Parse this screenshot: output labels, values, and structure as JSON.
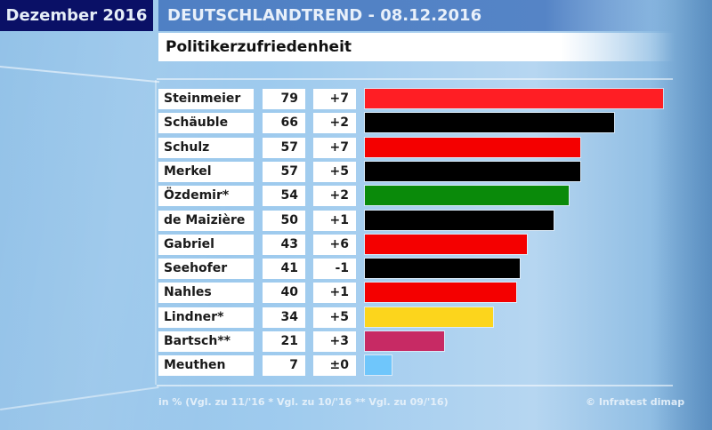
{
  "header": {
    "month": "Dezember 2016",
    "title": "DEUTSCHLANDTREND - 08.12.2016",
    "subtitle": "Politikerzufriedenheit"
  },
  "chart_data": {
    "type": "bar",
    "orientation": "horizontal",
    "title": "Politikerzufriedenheit",
    "unit": "%",
    "xlim": [
      0,
      80
    ],
    "grid": false,
    "categories": [
      "Steinmeier",
      "Schäuble",
      "Schulz",
      "Merkel",
      "Özdemir*",
      "de Maizière",
      "Gabriel",
      "Seehofer",
      "Nahles",
      "Lindner*",
      "Bartsch**",
      "Meuthen"
    ],
    "values": [
      79,
      66,
      57,
      57,
      54,
      50,
      43,
      41,
      40,
      34,
      21,
      7
    ],
    "changes": [
      "+7",
      "+2",
      "+7",
      "+5",
      "+2",
      "+1",
      "+6",
      "-1",
      "+1",
      "+5",
      "+3",
      "±0"
    ],
    "colors": [
      "#ff1e24",
      "#000000",
      "#f40000",
      "#000000",
      "#0a8a0a",
      "#000000",
      "#f40000",
      "#000000",
      "#f40000",
      "#fcd51c",
      "#c72a64",
      "#6fc6fb"
    ]
  },
  "footer": {
    "note": "in % (Vgl. zu 11/'16 * Vgl. zu 10/'16 ** Vgl. zu 09/'16)",
    "source": "© Infratest dimap"
  }
}
